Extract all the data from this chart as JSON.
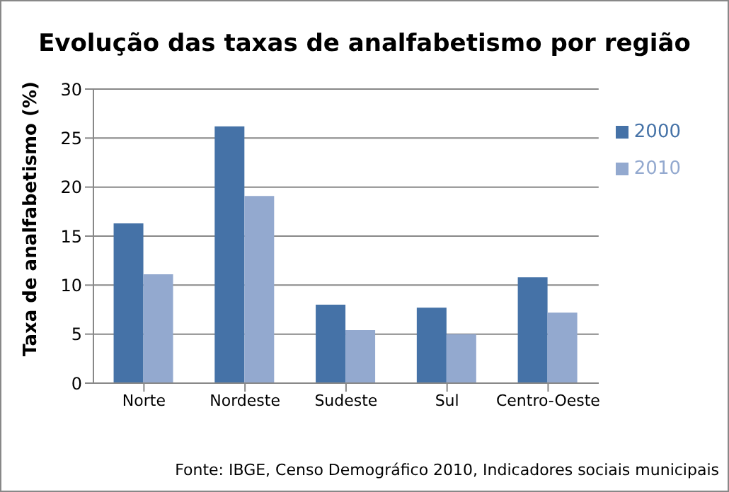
{
  "chart_data": {
    "type": "bar",
    "title": "Evolução das taxas de analfabetismo por região",
    "ylabel": "Taxa de analfabetismo (%)",
    "categories": [
      "Norte",
      "Nordeste",
      "Sudeste",
      "Sul",
      "Centro-Oeste"
    ],
    "series": [
      {
        "name": "2000",
        "color": "#4572a7",
        "values": [
          16.3,
          26.2,
          8.0,
          7.7,
          10.8
        ]
      },
      {
        "name": "2010",
        "color": "#93a9cf",
        "values": [
          11.1,
          19.1,
          5.4,
          5.0,
          7.2
        ]
      }
    ],
    "ylim": [
      0,
      30
    ],
    "yticks": [
      0,
      5,
      10,
      15,
      20,
      25,
      30
    ],
    "grid": "y",
    "legend": "top right",
    "annotations": [
      "Fonte: IBGE, Censo Demográfico 2010, Indicadores sociais municipais"
    ]
  }
}
